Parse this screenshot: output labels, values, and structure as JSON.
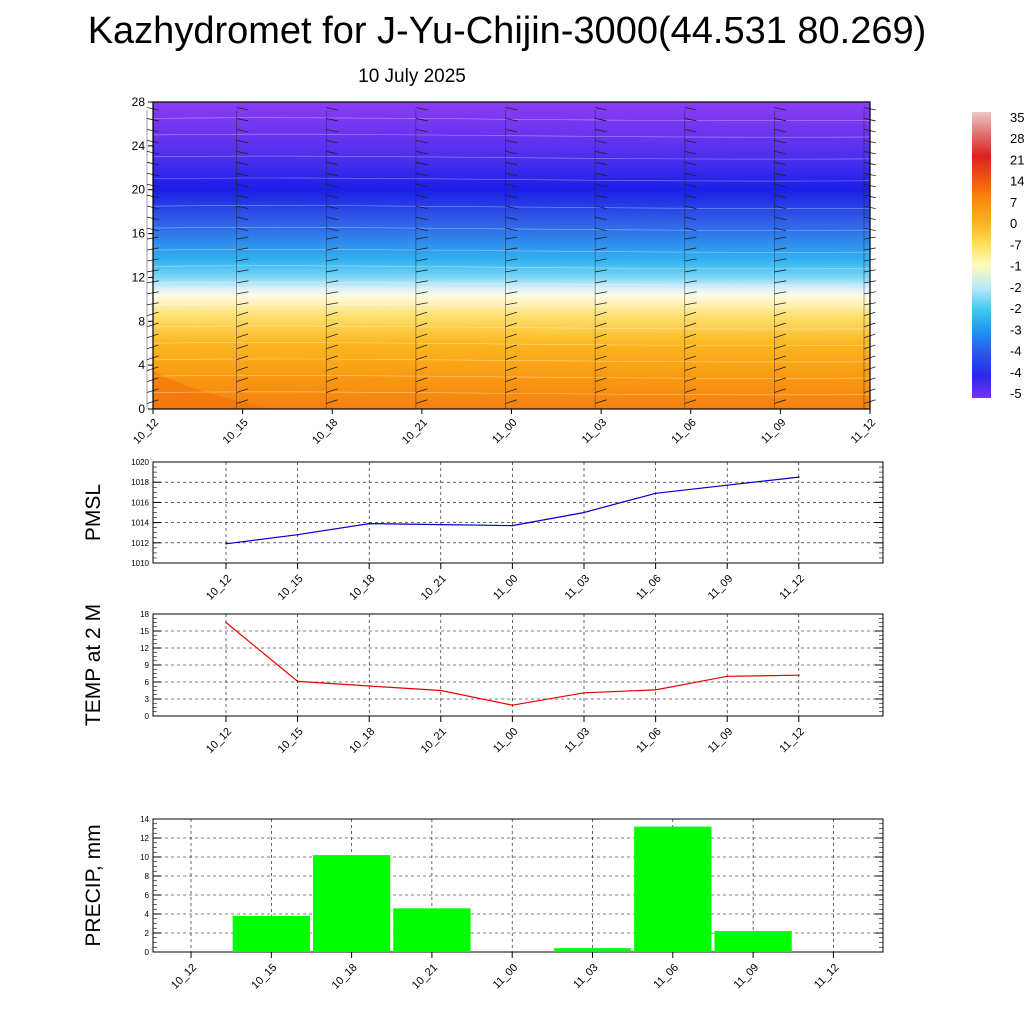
{
  "title": "Kazhydromet for J-Yu-Chijin-3000(44.531 80.269)",
  "subtitle": "10 July 2025",
  "colors": {
    "pmsl_line": "#0000cc",
    "temp_line": "#ee0000",
    "precip_bar": "#00ff00",
    "axis": "#000000"
  },
  "chart_data": [
    {
      "type": "heatmap",
      "title": "",
      "xlabel": "",
      "ylabel": "",
      "x_ticks": [
        "10_12",
        "10_15",
        "10_18",
        "10_21",
        "11_00",
        "11_03",
        "11_06",
        "11_09",
        "11_12"
      ],
      "y_ticks": [
        "0",
        "4",
        "8",
        "12",
        "16",
        "20",
        "24",
        "28"
      ],
      "ylim": [
        0,
        28
      ],
      "colorbar_labels": [
        "35",
        "28",
        "21",
        "14",
        "7",
        "0",
        "-7",
        "-1",
        "-2",
        "-2",
        "-3",
        "-4",
        "-4",
        "-5"
      ],
      "colorbar_colors": [
        "#f0c6c6",
        "#e07070",
        "#dd2020",
        "#ee5511",
        "#f88a10",
        "#fbb020",
        "#fde05a",
        "#fefbc0",
        "#b9e8f8",
        "#3fc8f0",
        "#1f92ee",
        "#2a55e8",
        "#2828ee",
        "#7a30f0"
      ],
      "temperature_bands": [
        {
          "height": 0,
          "color": "#f48010"
        },
        {
          "height": 3,
          "color": "#f99a12"
        },
        {
          "height": 6,
          "color": "#fbb820"
        },
        {
          "height": 8.5,
          "color": "#fde070"
        },
        {
          "height": 10.3,
          "color": "#fefbe4"
        },
        {
          "height": 11,
          "color": "#ddf1fa"
        },
        {
          "height": 12,
          "color": "#7dd6f4"
        },
        {
          "height": 13.5,
          "color": "#33b4f0"
        },
        {
          "height": 15.5,
          "color": "#2e85ec"
        },
        {
          "height": 17.5,
          "color": "#2f55e6"
        },
        {
          "height": 20,
          "color": "#1a1ee8"
        },
        {
          "height": 22,
          "color": "#3c2cec"
        },
        {
          "height": 25,
          "color": "#6a34f0"
        },
        {
          "height": 28,
          "color": "#8b3cf3"
        }
      ],
      "wind_barbs": "present"
    },
    {
      "type": "line",
      "ylabel": "PMSL",
      "x": [
        "10_12",
        "10_15",
        "10_18",
        "10_21",
        "11_00",
        "11_03",
        "11_06",
        "11_09",
        "11_12"
      ],
      "values": [
        1011.9,
        1012.8,
        1013.9,
        1013.8,
        1013.7,
        1015.0,
        1016.9,
        1017.7,
        1018.5
      ],
      "ylim": [
        1010,
        1020
      ],
      "y_ticks": [
        "1010",
        "1012",
        "1014",
        "1016",
        "1018",
        "1020"
      ],
      "grid": true
    },
    {
      "type": "line",
      "ylabel": "TEMP at 2 M",
      "x": [
        "10_12",
        "10_15",
        "10_18",
        "10_21",
        "11_00",
        "11_03",
        "11_06",
        "11_09",
        "11_12"
      ],
      "values": [
        16.5,
        6.1,
        5.3,
        4.5,
        1.9,
        4.1,
        4.6,
        7.0,
        7.2
      ],
      "ylim": [
        0,
        18
      ],
      "y_ticks": [
        "0",
        "3",
        "6",
        "9",
        "12",
        "15",
        "18"
      ],
      "grid": true
    },
    {
      "type": "bar",
      "ylabel": "PRECIP, mm",
      "categories": [
        "10_12",
        "10_15",
        "10_18",
        "10_21",
        "11_00",
        "11_03",
        "11_06",
        "11_09",
        "11_12"
      ],
      "values": [
        0,
        3.8,
        10.2,
        4.6,
        0,
        0.4,
        13.2,
        2.2,
        0
      ],
      "ylim": [
        0,
        14
      ],
      "y_ticks": [
        "0",
        "2",
        "4",
        "6",
        "8",
        "10",
        "12",
        "14"
      ],
      "grid": true
    }
  ]
}
